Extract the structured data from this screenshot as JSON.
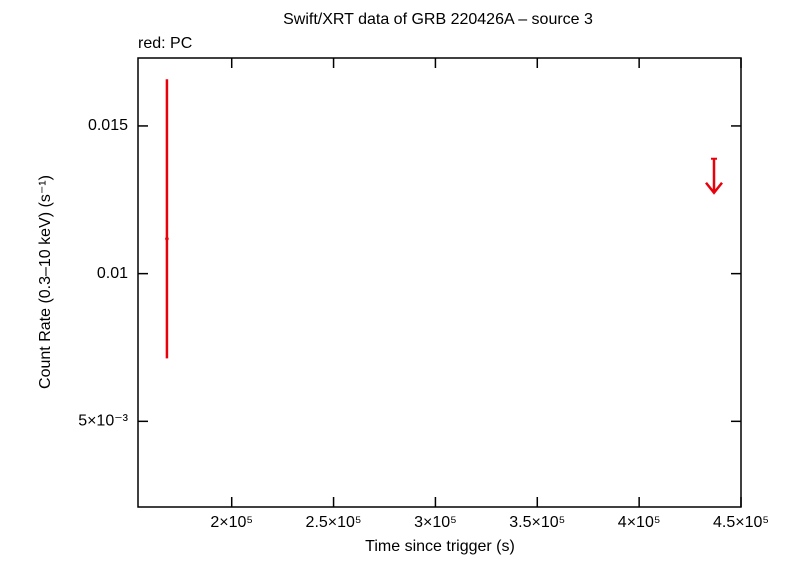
{
  "chart_data": {
    "type": "scatter",
    "title": "Swift/XRT data of GRB 220426A – source 3",
    "subtitle": "red: PC",
    "x_label": "Time since trigger (s)",
    "y_label": "Count Rate (0.3–10 keV) (s⁻¹)",
    "xlim": [
      154000,
      450000
    ],
    "ylim": [
      0.0021,
      0.0173
    ],
    "xticks": [
      {
        "value": 200000,
        "label": "2×10⁵"
      },
      {
        "value": 250000,
        "label": "2.5×10⁵"
      },
      {
        "value": 300000,
        "label": "3×10⁵"
      },
      {
        "value": 350000,
        "label": "3.5×10⁵"
      },
      {
        "value": 400000,
        "label": "4×10⁵"
      },
      {
        "value": 450000,
        "label": "4.5×10⁵"
      }
    ],
    "yticks": [
      {
        "value": 0.005,
        "label": "5×10⁻³"
      },
      0.01,
      0.015
    ],
    "series": [
      {
        "name": "PC",
        "color": "#e8000b",
        "x": [
          168200
        ],
        "values": [
          0.01118
        ],
        "y_err_plus": [
          0.0054
        ],
        "y_err_minus": [
          0.00405
        ]
      },
      {
        "name": "PC upper limit",
        "color": "#e8000b",
        "x": [
          436750
        ],
        "values": [
          0.01389
        ],
        "upper_limit": true
      }
    ]
  }
}
